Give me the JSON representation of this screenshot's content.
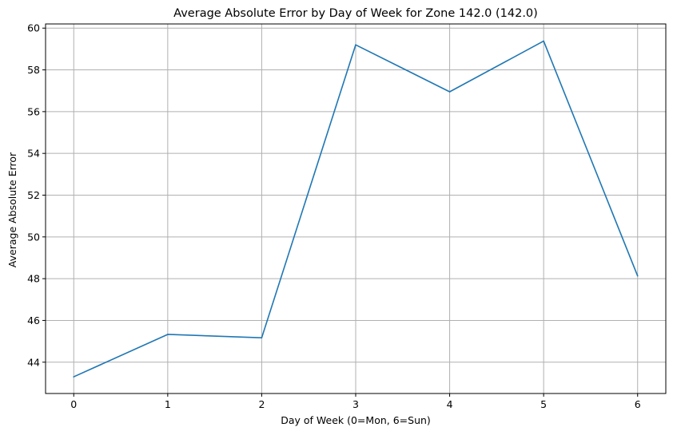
{
  "chart_data": {
    "type": "line",
    "title": "Average Absolute Error by Day of Week for Zone 142.0 (142.0)",
    "xlabel": "Day of Week (0=Mon, 6=Sun)",
    "ylabel": "Average Absolute Error",
    "x": [
      0,
      1,
      2,
      3,
      4,
      5,
      6
    ],
    "xticks": [
      "0",
      "1",
      "2",
      "3",
      "4",
      "5",
      "6"
    ],
    "yticks": [
      "44",
      "46",
      "48",
      "50",
      "52",
      "54",
      "56",
      "58",
      "60"
    ],
    "xlim": [
      -0.3,
      6.3
    ],
    "ylim": [
      42.5,
      60.2
    ],
    "grid": true,
    "series": [
      {
        "values": [
          43.3,
          45.33,
          45.17,
          59.2,
          56.95,
          59.38,
          48.13
        ],
        "color": "#1f77b4"
      }
    ],
    "colors": {
      "grid": "#b0b0b0",
      "axis": "#000000"
    }
  }
}
